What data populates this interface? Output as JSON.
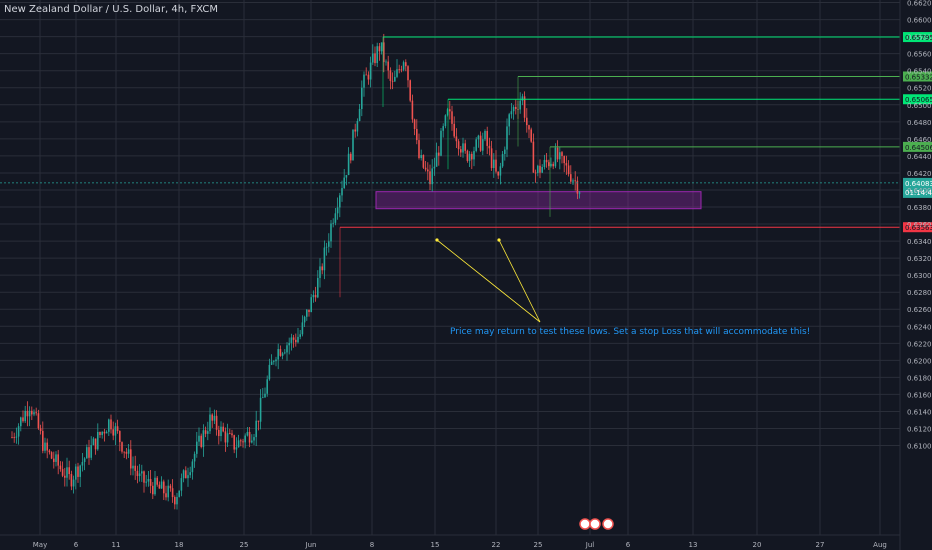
{
  "header": {
    "title": "New Zealand Dollar / U.S. Dollar, 4h, FXCM"
  },
  "chart_data": {
    "type": "candlestick",
    "symbol": "New Zealand Dollar / U.S. Dollar",
    "interval": "4h",
    "exchange": "FXCM",
    "ylim": [
      0.5995,
      0.6623
    ],
    "y_ticks": [
      "0.66200",
      "0.66000",
      "0.65800",
      "0.65600",
      "0.65400",
      "0.65200",
      "0.65000",
      "0.64800",
      "0.64600",
      "0.64400",
      "0.64200",
      "0.64000",
      "0.63800",
      "0.63600",
      "0.63400",
      "0.63200",
      "0.63000",
      "0.62800",
      "0.62600",
      "0.62400",
      "0.62200",
      "0.62000",
      "0.61800",
      "0.61600",
      "0.61400",
      "0.61200",
      "0.61000"
    ],
    "x_ticks": [
      "May",
      "6",
      "11",
      "18",
      "25",
      "Jun",
      "8",
      "15",
      "22",
      "25",
      "Jul",
      "6",
      "13",
      "20",
      "27",
      "Aug"
    ],
    "horizontal_levels": [
      {
        "value": "0.65795",
        "color": "#00e676",
        "label_bg": "#00e676"
      },
      {
        "value": "0.65332",
        "color": "#4caf50",
        "label_bg": "#4caf50"
      },
      {
        "value": "0.65065",
        "color": "#00e676",
        "label_bg": "#00e676"
      },
      {
        "value": "0.64506",
        "color": "#4caf50",
        "label_bg": "#4caf50"
      },
      {
        "value": "0.63563",
        "color": "#f23645",
        "label_bg": "#f23645"
      }
    ],
    "current_price": {
      "value": "0.64083",
      "countdown": "01:14:40",
      "color": "#26a69a"
    },
    "support_zone": {
      "low": 0.6378,
      "high": 0.6398,
      "color": "#9c27b0"
    },
    "annotation": "Price may return to test these lows. Set a stop Loss that will accommodate this!",
    "colors": {
      "up": "#26a69a",
      "down": "#ef5350",
      "background": "#131722",
      "grid": "#2a2e39",
      "axis_text": "#b2b5be"
    }
  }
}
